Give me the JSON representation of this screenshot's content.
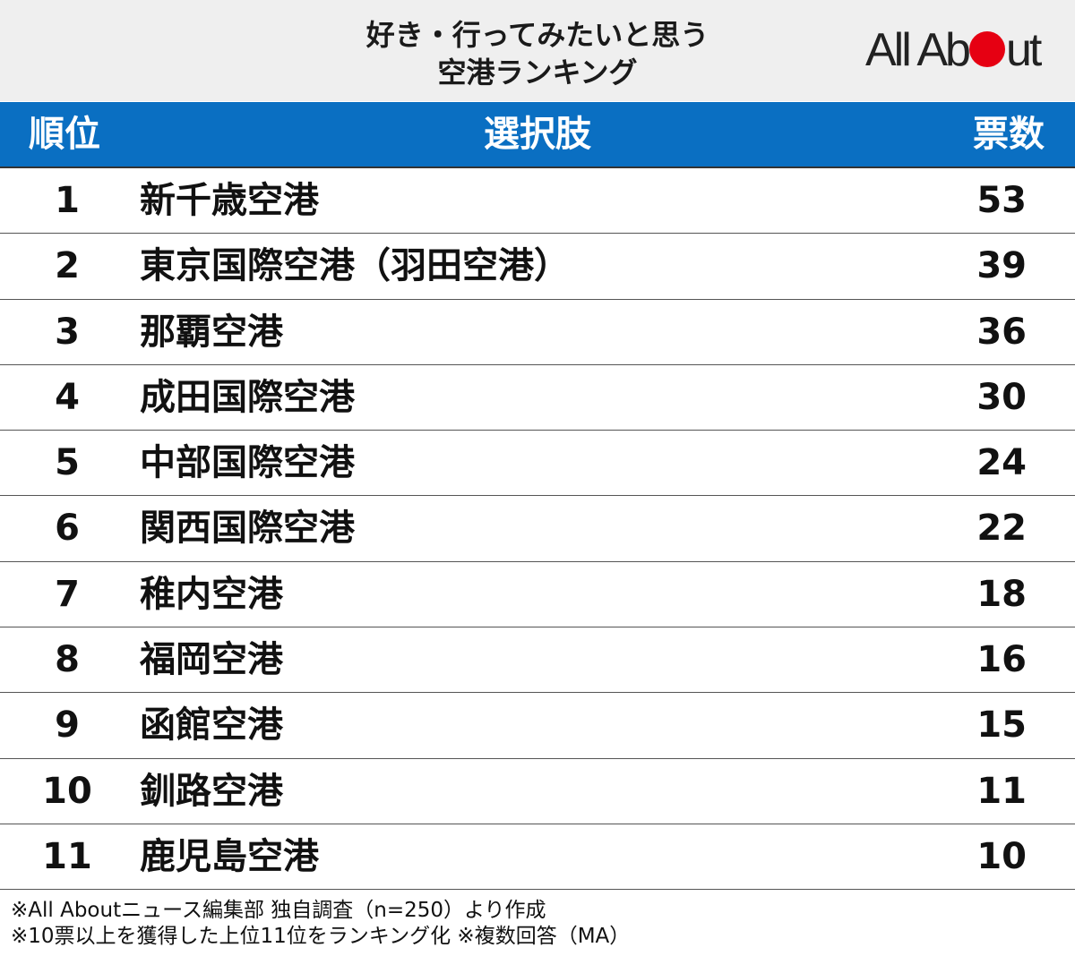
{
  "title": {
    "line1": "好き・行ってみたいと思う",
    "line2": "空港ランキング"
  },
  "logo": {
    "text_before": "All Ab",
    "text_after": "ut",
    "dot_color": "#e60012"
  },
  "colors": {
    "header_bar": "#0a6fc2",
    "header_text": "#ffffff",
    "title_band": "#efefef"
  },
  "table": {
    "headers": {
      "rank": "順位",
      "choice": "選択肢",
      "votes": "票数"
    }
  },
  "chart_data": {
    "type": "table",
    "columns": [
      "順位",
      "選択肢",
      "票数"
    ],
    "rows": [
      {
        "rank": "1",
        "name": "新千歳空港",
        "votes": 53
      },
      {
        "rank": "2",
        "name": "東京国際空港（羽田空港）",
        "votes": 39
      },
      {
        "rank": "3",
        "name": "那覇空港",
        "votes": 36
      },
      {
        "rank": "4",
        "name": "成田国際空港",
        "votes": 30
      },
      {
        "rank": "5",
        "name": "中部国際空港",
        "votes": 24
      },
      {
        "rank": "6",
        "name": "関西国際空港",
        "votes": 22
      },
      {
        "rank": "7",
        "name": "稚内空港",
        "votes": 18
      },
      {
        "rank": "8",
        "name": "福岡空港",
        "votes": 16
      },
      {
        "rank": "9",
        "name": "函館空港",
        "votes": 15
      },
      {
        "rank": "10",
        "name": "釧路空港",
        "votes": 11
      },
      {
        "rank": "11",
        "name": "鹿児島空港",
        "votes": 10
      }
    ]
  },
  "footnotes": {
    "line1": "※All Aboutニュース編集部 独自調査（n=250）より作成",
    "line2": "※10票以上を獲得した上位11位をランキング化 ※複数回答（MA）"
  }
}
